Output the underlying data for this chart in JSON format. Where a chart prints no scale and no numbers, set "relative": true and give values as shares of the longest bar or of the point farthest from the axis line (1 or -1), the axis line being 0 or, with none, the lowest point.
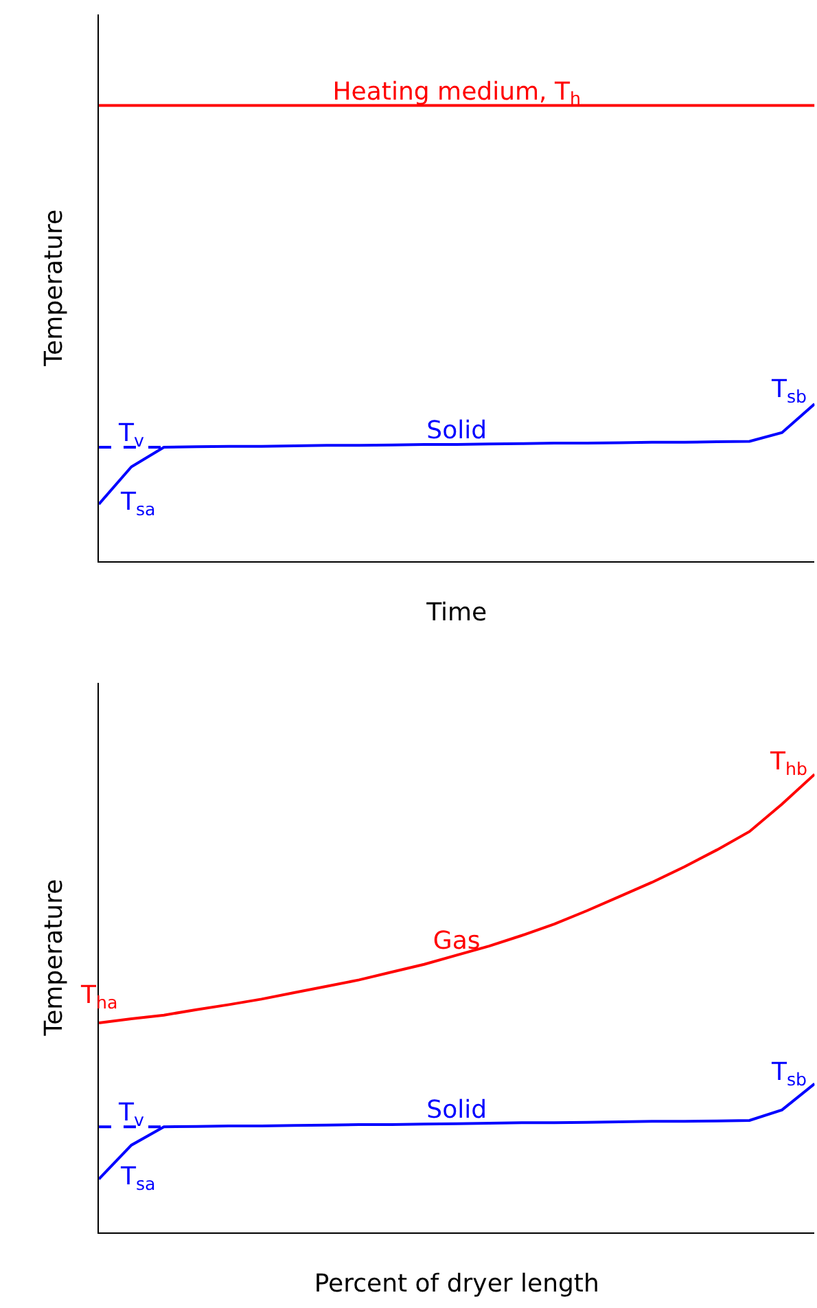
{
  "chart_data": [
    {
      "type": "line",
      "relative": true,
      "xlabel": "Time",
      "ylabel": "Temperature",
      "legend": false,
      "categories": [
        null,
        null,
        null,
        null,
        null,
        null,
        null,
        null,
        null,
        null,
        null,
        null,
        null,
        null,
        null,
        null,
        null,
        null,
        null,
        null,
        null,
        null,
        null
      ],
      "series": [
        {
          "name": "Heating medium, T$_{h}$",
          "color": "#ff0000",
          "values": [
            1,
            1,
            1,
            1,
            1,
            1,
            1,
            1,
            1,
            1,
            1,
            1,
            1,
            1,
            1,
            1,
            1,
            1,
            1,
            1,
            1,
            1,
            1
          ]
        },
        {
          "name": "T$_{v}$",
          "color": "#0000ff",
          "line_style": "dashed",
          "values": [
            0.25,
            0.25,
            0.25,
            null,
            null,
            null,
            null,
            null,
            null,
            null,
            null,
            null,
            null,
            null,
            null,
            null,
            null,
            null,
            null,
            null,
            null,
            null,
            null
          ]
        },
        {
          "name": "Solid",
          "color": "#0000ff",
          "values": [
            0.125,
            0.207,
            0.25,
            0.251,
            0.252,
            0.252,
            0.253,
            0.254,
            0.254,
            0.255,
            0.256,
            0.256,
            0.257,
            0.258,
            0.259,
            0.259,
            0.26,
            0.261,
            0.261,
            0.262,
            0.263,
            0.282,
            0.345
          ]
        }
      ],
      "annotations": [
        "T$_{sa}$",
        "T$_{sb}$"
      ]
    },
    {
      "type": "line",
      "relative": true,
      "xlabel": "Percent of dryer length",
      "ylabel": "Temperature",
      "legend": false,
      "categories": [
        null,
        null,
        null,
        null,
        null,
        null,
        null,
        null,
        null,
        null,
        null,
        null,
        null,
        null,
        null,
        null,
        null,
        null,
        null,
        null,
        null,
        null,
        null
      ],
      "series": [
        {
          "name": "Gas",
          "color": "#ff0000",
          "values": [
            0.457,
            0.466,
            0.474,
            0.486,
            0.497,
            0.509,
            0.523,
            0.537,
            0.551,
            0.568,
            0.585,
            0.605,
            0.625,
            0.648,
            0.673,
            0.702,
            0.733,
            0.764,
            0.798,
            0.835,
            0.875,
            0.935,
            1
          ]
        },
        {
          "name": "T$_{v}$",
          "color": "#0000ff",
          "line_style": "dashed",
          "values": [
            0.23,
            0.23,
            0.23,
            null,
            null,
            null,
            null,
            null,
            null,
            null,
            null,
            null,
            null,
            null,
            null,
            null,
            null,
            null,
            null,
            null,
            null,
            null,
            null
          ]
        },
        {
          "name": "Solid",
          "color": "#0000ff",
          "values": [
            0.116,
            0.19,
            0.23,
            0.231,
            0.232,
            0.232,
            0.233,
            0.234,
            0.235,
            0.235,
            0.236,
            0.237,
            0.238,
            0.239,
            0.239,
            0.24,
            0.241,
            0.242,
            0.242,
            0.243,
            0.244,
            0.267,
            0.324
          ]
        }
      ],
      "annotations": [
        "T$_{sa}$",
        "T$_{ha}$",
        "T$_{sb}$",
        "T$_{hb}$"
      ]
    }
  ]
}
